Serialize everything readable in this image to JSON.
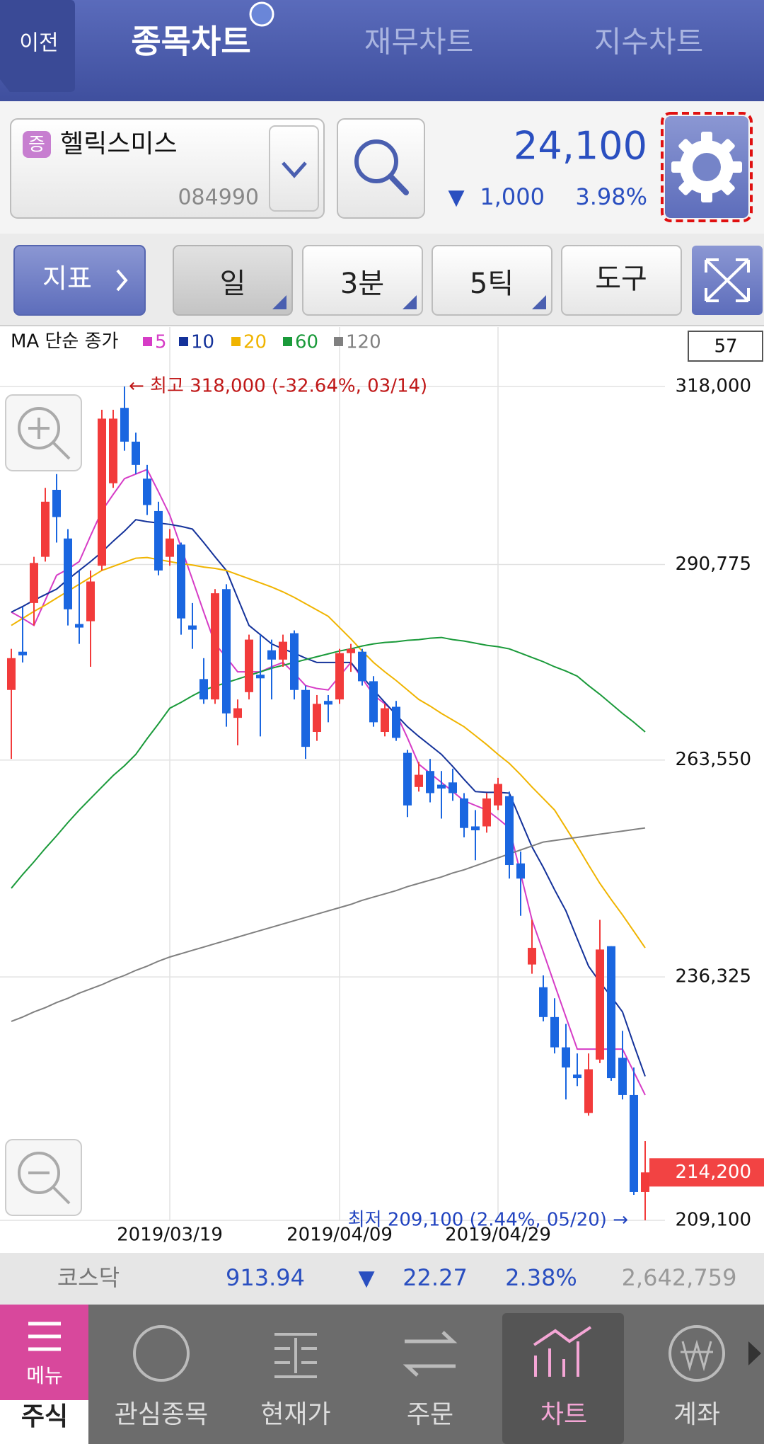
{
  "header": {
    "back": "이전",
    "tabs": [
      "종목차트",
      "재무차트",
      "지수차트"
    ]
  },
  "stock": {
    "badge": "증",
    "name": "헬릭스미스",
    "code": "084990",
    "price": "24,100",
    "change_sign": "▼",
    "change": "1,000",
    "change_pct": "3.98%"
  },
  "toolbar": {
    "indicator": "지표",
    "buttons": [
      "일",
      "3분",
      "5틱",
      "도구"
    ]
  },
  "chart_data": {
    "type": "candlestick",
    "legend_title": "MA 단순 종가",
    "visible_count": 57,
    "log": true,
    "grid": true,
    "up_color": "#f23b3b",
    "down_color": "#1a66e0",
    "categories": [
      null,
      null,
      null,
      null,
      null,
      null,
      null,
      null,
      null,
      null,
      null,
      null,
      null,
      null,
      "2019/03/19",
      null,
      null,
      null,
      null,
      null,
      null,
      null,
      null,
      null,
      null,
      null,
      null,
      null,
      null,
      "2019/04/09",
      null,
      null,
      null,
      null,
      null,
      null,
      null,
      null,
      null,
      null,
      null,
      null,
      null,
      "2019/04/29",
      null,
      null,
      null,
      null,
      null,
      null,
      null,
      null,
      null,
      null,
      null,
      null,
      null
    ],
    "open": [
      273000,
      278300,
      285200,
      291900,
      301900,
      294600,
      282200,
      282600,
      290600,
      302900,
      314600,
      309300,
      303600,
      298700,
      291900,
      293700,
      282000,
      274500,
      271700,
      287200,
      269200,
      272700,
      275100,
      278500,
      277200,
      280900,
      273000,
      267300,
      271500,
      271700,
      278100,
      278300,
      274200,
      267300,
      270700,
      264500,
      260000,
      262100,
      260300,
      260600,
      258500,
      254900,
      254900,
      257600,
      258800,
      250200,
      237800,
      235100,
      231600,
      228100,
      225000,
      220700,
      226700,
      240000,
      226900,
      222700,
      212100
    ],
    "high": [
      278700,
      284600,
      291900,
      302200,
      304300,
      296000,
      289900,
      289900,
      314300,
      314300,
      318000,
      310700,
      305700,
      300100,
      296000,
      294000,
      285200,
      277400,
      287200,
      287900,
      271700,
      280700,
      280700,
      280000,
      280700,
      281300,
      273600,
      272300,
      272300,
      278700,
      279400,
      278700,
      274900,
      271100,
      271500,
      264900,
      263300,
      263700,
      262100,
      262400,
      259200,
      257000,
      259200,
      261200,
      259400,
      251700,
      243200,
      236500,
      233800,
      230800,
      227400,
      227400,
      243200,
      240000,
      230000,
      225800,
      217600
    ],
    "low": [
      263700,
      276800,
      282000,
      291200,
      294000,
      282000,
      279400,
      276200,
      289900,
      302200,
      307900,
      304300,
      298100,
      289200,
      290600,
      280700,
      278700,
      271100,
      271100,
      268000,
      265500,
      271700,
      266700,
      271700,
      276200,
      271700,
      263700,
      266100,
      268600,
      271100,
      275500,
      273600,
      268000,
      266700,
      266100,
      256100,
      259400,
      258000,
      255900,
      258200,
      253500,
      250600,
      254100,
      257000,
      248300,
      243700,
      236700,
      231100,
      227400,
      222200,
      223700,
      220400,
      226300,
      224300,
      222200,
      211800,
      209100
    ],
    "close": [
      277400,
      277800,
      291000,
      300100,
      297800,
      284300,
      281700,
      288300,
      312900,
      312900,
      309300,
      305700,
      299600,
      289900,
      294600,
      283000,
      281400,
      271700,
      286600,
      269800,
      270500,
      280000,
      274600,
      277200,
      279700,
      273000,
      265300,
      271100,
      271000,
      278100,
      278700,
      274200,
      268600,
      270500,
      266500,
      257600,
      261600,
      259200,
      259800,
      259200,
      254700,
      254400,
      258500,
      260400,
      250000,
      248300,
      239800,
      231600,
      228100,
      225800,
      224600,
      225600,
      239600,
      224600,
      222700,
      212100,
      214200
    ],
    "series": [
      {
        "name": "5",
        "color": "#d63cc6",
        "values": [
          283900,
          283000,
          282000,
          285600,
          289200,
          290100,
          291200,
          295000,
          298700,
          301200,
          303600,
          304300,
          305000,
          301600,
          298100,
          293300,
          288600,
          283900,
          279400,
          277500,
          275500,
          275500,
          275500,
          276200,
          276800,
          275300,
          273600,
          273200,
          273000,
          274900,
          276800,
          274600,
          272300,
          271100,
          269800,
          266500,
          263000,
          261800,
          260600,
          259400,
          258200,
          257600,
          257000,
          255900,
          254700,
          248900,
          243200,
          239300,
          235400,
          231600,
          227900,
          227900,
          227900,
          227900,
          227900,
          225300,
          222700
        ]
      },
      {
        "name": "10",
        "color": "#14329a",
        "values": [
          283900,
          284700,
          285600,
          286400,
          287200,
          288600,
          289900,
          291200,
          292600,
          294200,
          295700,
          297400,
          297100,
          296900,
          296700,
          296400,
          296000,
          294000,
          291900,
          289900,
          285900,
          282000,
          280700,
          279400,
          278700,
          278100,
          277400,
          276800,
          276800,
          276800,
          276800,
          274900,
          273000,
          271300,
          269600,
          268000,
          266700,
          265500,
          264300,
          262700,
          261000,
          259400,
          259300,
          259300,
          259200,
          255700,
          252300,
          249700,
          246900,
          244300,
          240900,
          237600,
          235700,
          234000,
          232200,
          228400,
          224800
        ]
      },
      {
        "name": "20",
        "color": "#f0b400",
        "values": [
          282000,
          283000,
          284000,
          284900,
          285900,
          286900,
          287900,
          288900,
          289900,
          290500,
          291100,
          291700,
          291800,
          291500,
          291200,
          290900,
          290700,
          290400,
          290200,
          289900,
          289300,
          288700,
          288100,
          287500,
          286800,
          286000,
          285100,
          284200,
          283300,
          281700,
          280100,
          278400,
          276800,
          275500,
          274300,
          273000,
          271700,
          270800,
          269800,
          268900,
          268000,
          266800,
          265600,
          264300,
          263100,
          261600,
          260000,
          258500,
          257000,
          254700,
          252400,
          250000,
          247700,
          245700,
          243800,
          241800,
          239800
        ]
      },
      {
        "name": "60",
        "color": "#1a9a3a",
        "values": [
          247100,
          248800,
          250400,
          252100,
          253700,
          255400,
          257000,
          258500,
          260000,
          261500,
          262800,
          264300,
          266400,
          268400,
          270500,
          271300,
          272200,
          273000,
          273500,
          274000,
          274500,
          275000,
          275500,
          276000,
          276400,
          276800,
          277200,
          277600,
          278000,
          278400,
          278700,
          279100,
          279400,
          279600,
          279700,
          279900,
          280000,
          280200,
          280300,
          280000,
          279800,
          279500,
          279200,
          279000,
          278700,
          278100,
          277500,
          276900,
          276200,
          275600,
          274900,
          273600,
          272400,
          271100,
          269800,
          268600,
          267300
        ]
      },
      {
        "name": "120",
        "color": "#808080",
        "values": [
          231100,
          231600,
          232200,
          232700,
          233300,
          233800,
          234400,
          234900,
          235400,
          236000,
          236500,
          237100,
          237600,
          238200,
          238700,
          239100,
          239500,
          239900,
          240300,
          240700,
          241100,
          241500,
          241900,
          242300,
          242700,
          243100,
          243500,
          243900,
          244300,
          244700,
          245100,
          245600,
          246000,
          246400,
          246800,
          247300,
          247700,
          248100,
          248500,
          249000,
          249400,
          249900,
          250400,
          250900,
          251400,
          251900,
          252400,
          252900,
          253100,
          253300,
          253500,
          253700,
          253900,
          254100,
          254300,
          254500,
          254700
        ]
      }
    ],
    "ylim": [
      209100,
      318000
    ],
    "yticks": [
      {
        "value": 209100,
        "label": "209,100"
      },
      {
        "value": 236325,
        "label": "236,325"
      },
      {
        "value": 263550,
        "label": "263,550"
      },
      {
        "value": 290775,
        "label": "290,775"
      },
      {
        "value": 318000,
        "label": "318,000"
      }
    ],
    "last_price": {
      "value": 214200,
      "label": "214,200"
    },
    "high_note": "← 최고 318,000 (-32.64%, 03/14)",
    "low_note": "최저 209,100 (2.44%, 05/20) →"
  },
  "index_bar": {
    "name": "코스닥",
    "value": "913.94",
    "sign": "▼",
    "change": "22.27",
    "pct": "2.38%",
    "volume": "2,642,759"
  },
  "nav": {
    "menu": "메뉴",
    "items": [
      "주식",
      "관심종목",
      "현재가",
      "주문",
      "차트",
      "계좌"
    ]
  }
}
